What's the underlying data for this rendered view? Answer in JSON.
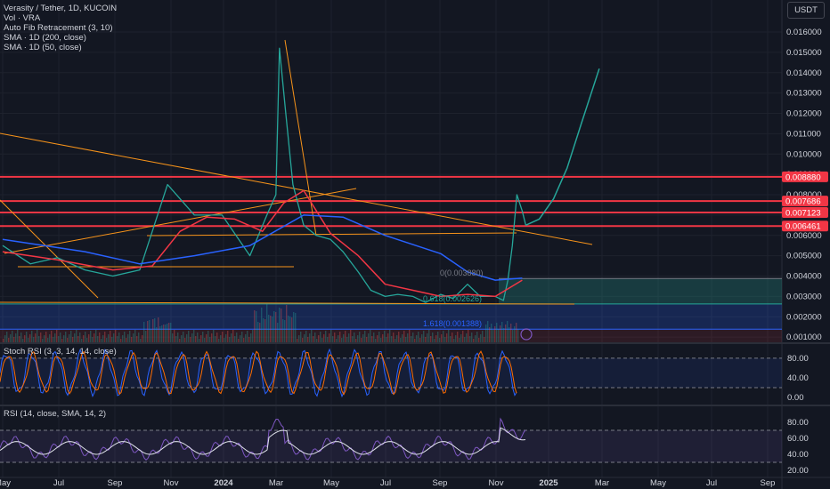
{
  "header": {
    "symbol_line": "Verasity / Tether, 1D, KUCOIN",
    "volume_line": "Vol · VRA",
    "fib_line": "Auto Fib Retracement (3, 10)",
    "sma200_line": "SMA · 1D (200, close)",
    "sma50_line": "SMA · 1D (50, close)",
    "currency": "USDT"
  },
  "chart_data": [
    {
      "type": "line",
      "title": "Verasity / Tether, 1D, KUCOIN",
      "yticks": [
        "0.016000",
        "0.015000",
        "0.014000",
        "0.013000",
        "0.012000",
        "0.011000",
        "0.010000",
        "0.009000",
        "0.008000",
        "0.007000",
        "0.006000",
        "0.005000",
        "0.004000",
        "0.003000",
        "0.002000",
        "0.001000"
      ],
      "price_lines": [
        {
          "label": "0.008880",
          "value": 0.00888
        },
        {
          "label": "0.007686",
          "value": 0.007686
        },
        {
          "label": "0.007123",
          "value": 0.007123
        },
        {
          "label": "0.006461",
          "value": 0.006461
        }
      ],
      "fib_labels": [
        {
          "text": "0(0.003880)",
          "value": 0.00388
        },
        {
          "text": "0.618(0.002626)",
          "value": 0.002626
        },
        {
          "text": "1.618(0.001388)",
          "value": 0.001388
        }
      ],
      "series": [
        {
          "name": "Price",
          "color": "#26a69a",
          "x": [
            "2023-05-01",
            "2023-06-01",
            "2023-07-01",
            "2023-08-01",
            "2023-09-01",
            "2023-10-01",
            "2023-11-01",
            "2023-12-01",
            "2024-01-01",
            "2024-02-01",
            "2024-02-20",
            "2024-03-01",
            "2024-03-05",
            "2024-03-12",
            "2024-03-20",
            "2024-04-01",
            "2024-04-15",
            "2024-05-01",
            "2024-05-15",
            "2024-06-01",
            "2024-06-15",
            "2024-07-01",
            "2024-07-15",
            "2024-08-01",
            "2024-08-15",
            "2024-09-01",
            "2024-09-15",
            "2024-10-01",
            "2024-10-15",
            "2024-11-01",
            "2024-11-10",
            "2024-11-15",
            "2024-11-20",
            "2024-11-25",
            "2024-12-01",
            "2024-12-05"
          ],
          "values": [
            0.0055,
            0.0046,
            0.0049,
            0.0043,
            0.004,
            0.0043,
            0.0085,
            0.007,
            0.007,
            0.005,
            0.007,
            0.008,
            0.0152,
            0.012,
            0.0085,
            0.0065,
            0.006,
            0.0058,
            0.0052,
            0.0042,
            0.0033,
            0.003,
            0.0031,
            0.003,
            0.0027,
            0.0031,
            0.0029,
            0.0036,
            0.003,
            0.003,
            0.0028,
            0.0038,
            0.0055,
            0.008,
            0.0072,
            0.0065
          ]
        },
        {
          "name": "Projection",
          "color": "#26a69a",
          "x": [
            "2024-12-05",
            "2024-12-20",
            "2025-01-05",
            "2025-01-20",
            "2025-02-05",
            "2025-02-25"
          ],
          "values": [
            0.0065,
            0.0068,
            0.0078,
            0.0093,
            0.0115,
            0.0142
          ]
        },
        {
          "name": "SMA 50",
          "color": "#f23645",
          "x": [
            "2023-05-01",
            "2023-07-01",
            "2023-09-01",
            "2023-10-15",
            "2023-11-15",
            "2023-12-15",
            "2024-01-15",
            "2024-02-15",
            "2024-03-10",
            "2024-04-01",
            "2024-05-01",
            "2024-06-01",
            "2024-07-01",
            "2024-08-01",
            "2024-09-01",
            "2024-10-01",
            "2024-11-01",
            "2024-12-01"
          ],
          "values": [
            0.0052,
            0.0048,
            0.0043,
            0.0045,
            0.0062,
            0.0069,
            0.0068,
            0.0062,
            0.0076,
            0.0082,
            0.0061,
            0.005,
            0.0036,
            0.0033,
            0.003,
            0.0031,
            0.003,
            0.0038
          ]
        },
        {
          "name": "SMA 200",
          "color": "#2962ff",
          "x": [
            "2023-05-01",
            "2023-08-01",
            "2023-10-01",
            "2023-12-01",
            "2024-02-01",
            "2024-04-01",
            "2024-05-15",
            "2024-07-01",
            "2024-09-01",
            "2024-10-01",
            "2024-11-01",
            "2024-12-01"
          ],
          "values": [
            0.0058,
            0.0052,
            0.0046,
            0.005,
            0.0055,
            0.007,
            0.0069,
            0.006,
            0.0051,
            0.0042,
            0.0038,
            0.0039
          ]
        }
      ]
    },
    {
      "type": "line",
      "title": "Stoch RSI (3, 3, 14, 14, close)",
      "yticks": [
        "80.00",
        "40.00",
        "0.00"
      ],
      "bands": [
        80,
        20
      ]
    },
    {
      "type": "line",
      "title": "RSI (14, close, SMA, 14, 2)",
      "yticks": [
        "80.00",
        "60.00",
        "40.00",
        "20.00"
      ],
      "bands": [
        70,
        30
      ]
    }
  ],
  "xaxis": [
    "May",
    "Jul",
    "Sep",
    "Nov",
    "2024",
    "Mar",
    "May",
    "Jul",
    "Sep",
    "Nov",
    "2025",
    "Mar",
    "May",
    "Jul",
    "Sep"
  ],
  "colors": {
    "bg": "#131722",
    "up": "#26a69a",
    "down": "#ef5350",
    "sma50": "#f23645",
    "sma200": "#2962ff",
    "trend": "#f7931a",
    "rsi": "#7e57c2",
    "stoch_k": "#2962ff",
    "stoch_d": "#ff6d00"
  }
}
